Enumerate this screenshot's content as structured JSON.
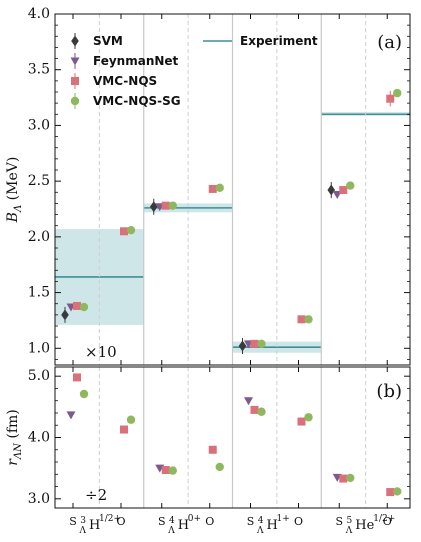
{
  "chart_data": [
    {
      "panel_label": "(a)",
      "type": "scatter",
      "ylabel": "B_Λ (MeV)",
      "ylabel_main": "B",
      "ylabel_sub": "Λ",
      "ylabel_unit": "(MeV)",
      "ylim": [
        0.85,
        4.0
      ],
      "yticks": [
        "1.0",
        "1.5",
        "2.0",
        "2.5",
        "3.0",
        "3.5",
        "4.0"
      ],
      "ytick_values": [
        1.0,
        1.5,
        2.0,
        2.5,
        3.0,
        3.5,
        4.0
      ],
      "annotation": "×10",
      "legend": {
        "placement": "top",
        "entries": [
          {
            "label": "SVM",
            "marker": "diamond",
            "color": "#3a3a3a"
          },
          {
            "label": "FeynmanNet",
            "marker": "triangle-down",
            "color": "#7d5a8c"
          },
          {
            "label": "VMC-NQS",
            "marker": "square",
            "color": "#d9707a"
          },
          {
            "label": "VMC-NQS-SG",
            "marker": "circle",
            "color": "#8fb85e"
          },
          {
            "label": "Experiment",
            "marker": "line",
            "color": "#3c8f96"
          }
        ]
      },
      "groups": [
        {
          "x": 0,
          "SVM": 1.3,
          "FeynmanNet": 1.37,
          "VMC-NQS": 1.38,
          "VMC-NQS-SG": 1.37,
          "shifted": {
            "VMC-NQS": 2.05,
            "VMC-NQS-SG": 2.06
          },
          "experiment": 1.64,
          "exp_low": 1.21,
          "exp_high": 2.07
        },
        {
          "x": 1,
          "SVM": 2.27,
          "FeynmanNet": 2.27,
          "VMC-NQS": 2.28,
          "VMC-NQS-SG": 2.28,
          "shifted": {
            "VMC-NQS": 2.43,
            "VMC-NQS-SG": 2.44
          },
          "experiment": 2.26,
          "exp_low": 2.22,
          "exp_high": 2.3
        },
        {
          "x": 2,
          "SVM": 1.02,
          "FeynmanNet": 1.04,
          "VMC-NQS": 1.04,
          "VMC-NQS-SG": 1.04,
          "shifted": {
            "VMC-NQS": 1.26,
            "VMC-NQS-SG": 1.26
          },
          "experiment": 1.01,
          "exp_low": 0.96,
          "exp_high": 1.06
        },
        {
          "x": 3,
          "SVM": 2.42,
          "FeynmanNet": 2.38,
          "VMC-NQS": 2.42,
          "VMC-NQS-SG": 2.46,
          "shifted": {
            "VMC-NQS": 3.24,
            "VMC-NQS-SG": 3.29
          },
          "experiment": 3.1,
          "exp_low": 3.09,
          "exp_high": 3.12
        }
      ]
    },
    {
      "panel_label": "(b)",
      "type": "scatter",
      "ylabel": "r_ΛN (fm)",
      "ylabel_main": "r",
      "ylabel_sub": "ΛN",
      "ylabel_unit": "(fm)",
      "ylim": [
        2.85,
        5.15
      ],
      "yticks": [
        "3.0",
        "4.0",
        "5.0"
      ],
      "ytick_values": [
        3.0,
        4.0,
        5.0
      ],
      "annotation": "÷2",
      "groups": [
        {
          "x": 0,
          "FeynmanNet": 4.37,
          "VMC-NQS": 4.98,
          "VMC-NQS-SG": 4.71,
          "shifted": {
            "VMC-NQS": 4.13,
            "VMC-NQS-SG": 4.29
          }
        },
        {
          "x": 1,
          "FeynmanNet": 3.5,
          "VMC-NQS": 3.47,
          "VMC-NQS-SG": 3.46,
          "shifted": {
            "VMC-NQS": 3.8,
            "VMC-NQS-SG": 3.52
          }
        },
        {
          "x": 2,
          "FeynmanNet": 4.6,
          "VMC-NQS": 4.45,
          "VMC-NQS-SG": 4.42,
          "shifted": {
            "VMC-NQS": 4.26,
            "VMC-NQS-SG": 4.33
          }
        },
        {
          "x": 3,
          "FeynmanNet": 3.35,
          "VMC-NQS": 3.33,
          "VMC-NQS-SG": 3.34,
          "shifted": {
            "VMC-NQS": 3.11,
            "VMC-NQS-SG": 3.12
          }
        }
      ]
    }
  ],
  "xticks": [
    {
      "label": "S",
      "nucleus": "H",
      "A": "3",
      "Λ": "Λ",
      "spin": "1/2",
      "parity": "+",
      "group": 0
    },
    {
      "label": "O",
      "group": 0
    },
    {
      "label": "S",
      "nucleus": "H",
      "A": "4",
      "Λ": "Λ",
      "spin": "0",
      "parity": "+",
      "group": 1
    },
    {
      "label": "O",
      "group": 1
    },
    {
      "label": "S",
      "nucleus": "H",
      "A": "4",
      "Λ": "Λ",
      "spin": "1",
      "parity": "+",
      "group": 2
    },
    {
      "label": "O",
      "group": 2
    },
    {
      "label": "S",
      "nucleus": "He",
      "A": "5",
      "Λ": "Λ",
      "spin": "1/2",
      "parity": "+",
      "group": 3
    },
    {
      "label": "O",
      "group": 3
    }
  ],
  "colors": {
    "SVM": "#3a3a3a",
    "FeynmanNet": "#7d5a8c",
    "VMC-NQS": "#d9707a",
    "VMC-NQS-SG": "#8fb85e",
    "Experiment": "#3c8f96",
    "ExperimentBand": "#bfdde1"
  }
}
